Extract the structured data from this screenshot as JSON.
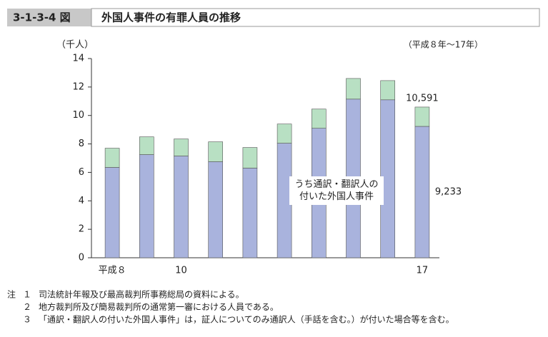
{
  "figure_number": "3-1-3-4 図",
  "chart_data": {
    "type": "stacked-bar",
    "title": "外国人事件の有罪人員の推移",
    "subtitle": "（平成８年～17年）",
    "y_label": "（千人）",
    "categories": [
      "平成８",
      null,
      "10",
      null,
      null,
      null,
      null,
      null,
      null,
      "17"
    ],
    "series": [
      {
        "name": "うち通訳・翻訳人の付いた外国人事件",
        "color": "#a9b3dd",
        "values": [
          6.35,
          7.25,
          7.15,
          6.75,
          6.3,
          8.05,
          9.1,
          11.15,
          11.1,
          9.233
        ],
        "value_labels": [
          null,
          null,
          null,
          null,
          null,
          null,
          null,
          null,
          null,
          "9,233"
        ]
      },
      {
        "color": "#b8e0c3",
        "values": [
          1.35,
          1.25,
          1.2,
          1.4,
          1.45,
          1.35,
          1.35,
          1.45,
          1.35,
          1.358
        ]
      }
    ],
    "total_labels": [
      {
        "index": 9,
        "value": 10.591,
        "label": "10,591"
      }
    ],
    "ylim": [
      0,
      14
    ],
    "yticks": [
      0,
      2,
      4,
      6,
      8,
      10,
      12,
      14
    ]
  },
  "notes": {
    "label": "注",
    "items": [
      {
        "num": "１",
        "text": "司法統計年報及び最高裁判所事務総局の資料による。"
      },
      {
        "num": "２",
        "text": "地方裁判所及び簡易裁判所の通常第一審における人員である。"
      },
      {
        "num": "３",
        "text": "「通訳・翻訳人の付いた外国人事件」は，証人についてのみ通訳人（手話を含む。）が付いた場合等を含む。"
      }
    ]
  }
}
